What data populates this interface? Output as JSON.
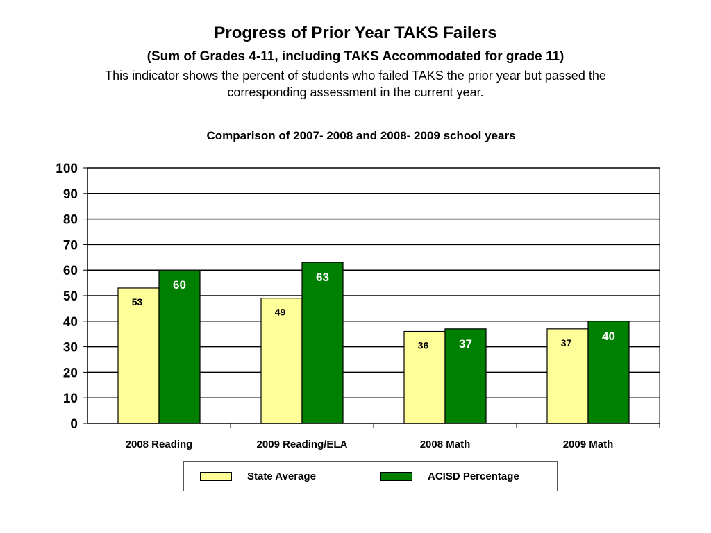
{
  "header": {
    "title": "Progress of Prior Year TAKS Failers",
    "subtitle": "(Sum of Grades 4-11, including TAKS Accommodated for grade 11)",
    "description": "This indicator shows the percent of students who failed TAKS the prior year but passed the corresponding assessment in the current year."
  },
  "chart_data": {
    "type": "bar",
    "title": "Comparison of 2007- 2008 and 2008- 2009 school years",
    "xlabel": "",
    "ylabel": "",
    "ylim": [
      0,
      100
    ],
    "yticks": [
      "0",
      "10",
      "20",
      "30",
      "40",
      "50",
      "60",
      "70",
      "80",
      "90",
      "100"
    ],
    "grid": true,
    "legend_position": "bottom",
    "categories": [
      "2008 Reading",
      "2009 Reading/ELA",
      "2008 Math",
      "2009 Math"
    ],
    "series": [
      {
        "name": "State Average",
        "values": [
          53,
          49,
          36,
          37
        ],
        "labels": [
          "53",
          "49",
          "36",
          "37"
        ],
        "color": "#ffff99",
        "label_color": "#000000"
      },
      {
        "name": "ACISD Percentage",
        "values": [
          60,
          63,
          37,
          40
        ],
        "labels": [
          "60",
          "63",
          "37",
          "40"
        ],
        "color": "#008000",
        "label_color": "#ffffff"
      }
    ]
  }
}
